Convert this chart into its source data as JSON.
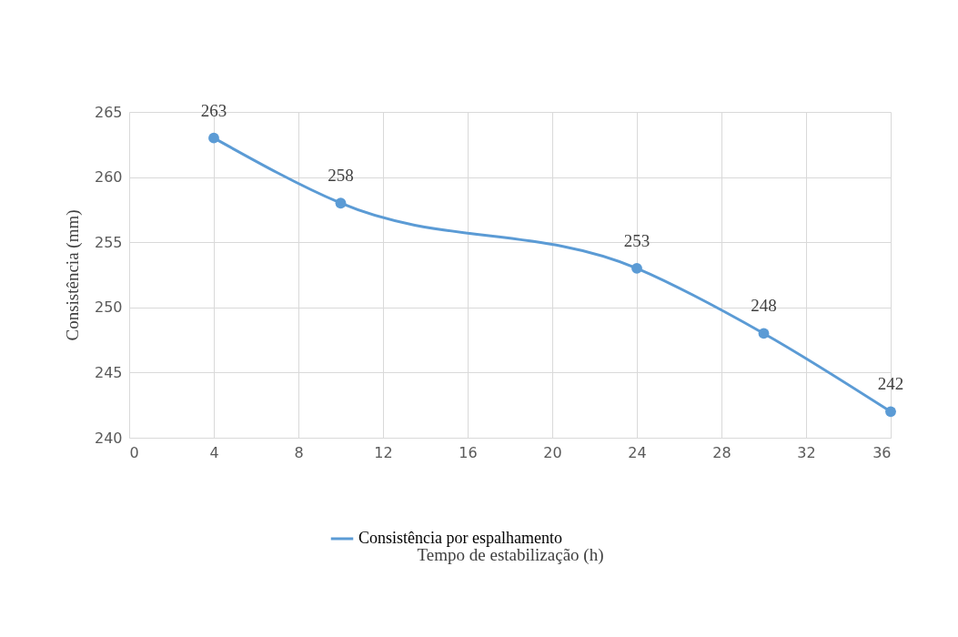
{
  "chart_data": {
    "type": "line",
    "xlabel": "Tempo de estabilização (h)",
    "ylabel": "Consistência (mm)",
    "x": [
      4,
      10,
      24,
      30,
      36
    ],
    "series": [
      {
        "name": "Consistência por espalhamento",
        "color": "#5b9bd5",
        "values": [
          263,
          258,
          253,
          248,
          242
        ]
      }
    ],
    "xlim": [
      0,
      36
    ],
    "xticks": [
      0,
      4,
      8,
      12,
      16,
      20,
      24,
      28,
      32,
      36
    ],
    "ylim": [
      240,
      265
    ],
    "yticks": [
      240,
      245,
      250,
      255,
      260,
      265
    ],
    "grid": true,
    "legend": "bottom",
    "marker": "circle",
    "line_style": "solid",
    "data_labels": true
  }
}
